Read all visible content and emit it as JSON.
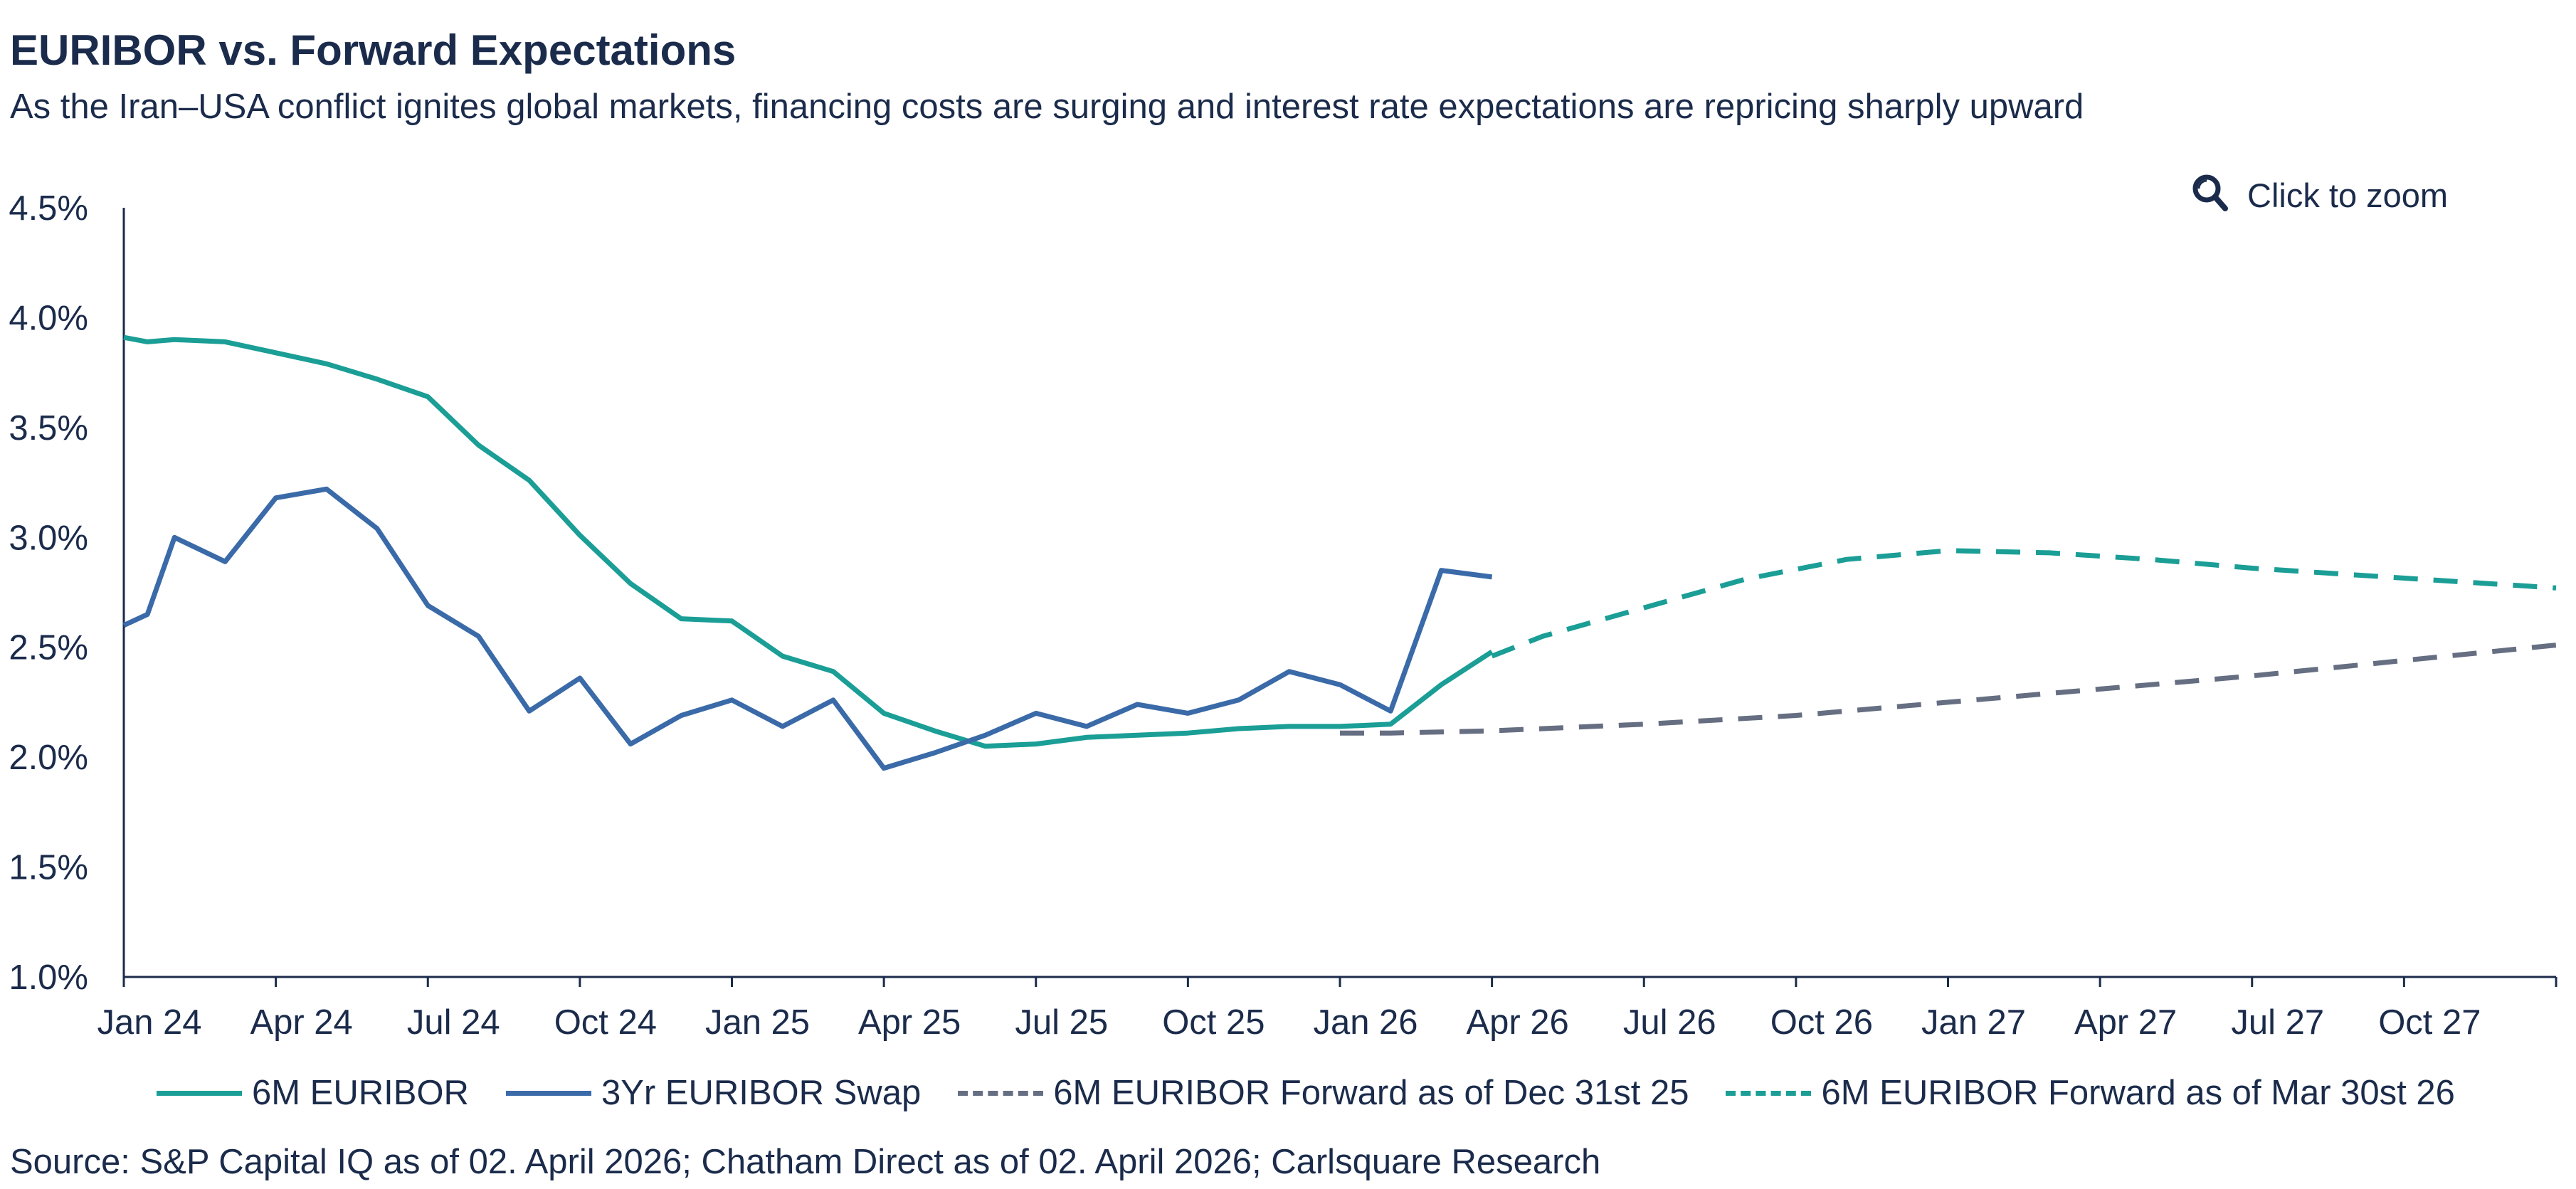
{
  "header": {
    "title": "EURIBOR vs. Forward Expectations",
    "subtitle": "As the Iran–USA conflict ignites global markets, financing costs are surging and interest rate expectations are repricing sharply upward"
  },
  "zoom": {
    "label": "Click to zoom",
    "icon": "magnifier-icon"
  },
  "source": "Source: S&P Capital IQ as of 02. April 2026; Chatham Direct as of 02. April 2026; Carlsquare Research",
  "colors": {
    "teal": "#1a9e96",
    "blue": "#3a6aa8",
    "gray": "#666e82",
    "axis": "#1b2b4b"
  },
  "chart_data": {
    "type": "line",
    "title": "EURIBOR vs. Forward Expectations",
    "ylim": [
      1.0,
      4.5
    ],
    "xlim": [
      "2024-01",
      "2028-01"
    ],
    "y_ticks": [
      "1.0%",
      "1.5%",
      "2.0%",
      "2.5%",
      "3.0%",
      "3.5%",
      "4.0%",
      "4.5%"
    ],
    "x_ticks": [
      "Jan 24",
      "Apr 24",
      "Jul 24",
      "Oct 24",
      "Jan 25",
      "Apr 25",
      "Jul 25",
      "Oct 25",
      "Jan 26",
      "Apr 26",
      "Jul 26",
      "Oct 26",
      "Jan 27",
      "Apr 27",
      "Jul 27",
      "Oct 27"
    ],
    "grid": false,
    "legend_position": "bottom",
    "series": [
      {
        "name": "6M EURIBOR",
        "style": "solid",
        "color": "#1a9e96",
        "points": [
          [
            "2024-01",
            3.91
          ],
          [
            "2024-01-15",
            3.89
          ],
          [
            "2024-02",
            3.9
          ],
          [
            "2024-03",
            3.89
          ],
          [
            "2024-04",
            3.84
          ],
          [
            "2024-05",
            3.79
          ],
          [
            "2024-06",
            3.72
          ],
          [
            "2024-07",
            3.64
          ],
          [
            "2024-08",
            3.42
          ],
          [
            "2024-09",
            3.26
          ],
          [
            "2024-10",
            3.01
          ],
          [
            "2024-11",
            2.79
          ],
          [
            "2024-12",
            2.63
          ],
          [
            "2025-01",
            2.62
          ],
          [
            "2025-02",
            2.46
          ],
          [
            "2025-03",
            2.39
          ],
          [
            "2025-04",
            2.2
          ],
          [
            "2025-05",
            2.12
          ],
          [
            "2025-06",
            2.05
          ],
          [
            "2025-07",
            2.06
          ],
          [
            "2025-08",
            2.09
          ],
          [
            "2025-09",
            2.1
          ],
          [
            "2025-10",
            2.11
          ],
          [
            "2025-11",
            2.13
          ],
          [
            "2025-12",
            2.14
          ],
          [
            "2026-01",
            2.14
          ],
          [
            "2026-02",
            2.15
          ],
          [
            "2026-03",
            2.33
          ],
          [
            "2026-04",
            2.48
          ]
        ]
      },
      {
        "name": "3Yr EURIBOR Swap",
        "style": "solid",
        "color": "#3a6aa8",
        "points": [
          [
            "2024-01",
            2.6
          ],
          [
            "2024-01-15",
            2.65
          ],
          [
            "2024-02",
            3.0
          ],
          [
            "2024-03",
            2.89
          ],
          [
            "2024-04",
            3.18
          ],
          [
            "2024-05",
            3.22
          ],
          [
            "2024-06",
            3.04
          ],
          [
            "2024-07",
            2.69
          ],
          [
            "2024-08",
            2.55
          ],
          [
            "2024-09",
            2.21
          ],
          [
            "2024-10",
            2.36
          ],
          [
            "2024-11",
            2.06
          ],
          [
            "2024-12",
            2.19
          ],
          [
            "2025-01",
            2.26
          ],
          [
            "2025-02",
            2.14
          ],
          [
            "2025-03",
            2.26
          ],
          [
            "2025-04",
            1.95
          ],
          [
            "2025-05",
            2.02
          ],
          [
            "2025-06",
            2.1
          ],
          [
            "2025-07",
            2.2
          ],
          [
            "2025-08",
            2.14
          ],
          [
            "2025-09",
            2.24
          ],
          [
            "2025-10",
            2.2
          ],
          [
            "2025-11",
            2.26
          ],
          [
            "2025-12",
            2.39
          ],
          [
            "2026-01",
            2.33
          ],
          [
            "2026-02",
            2.21
          ],
          [
            "2026-03",
            2.85
          ],
          [
            "2026-04",
            2.82
          ]
        ]
      },
      {
        "name": "6M EURIBOR Forward as of Dec 31st 25",
        "style": "dashed",
        "color": "#666e82",
        "points": [
          [
            "2026-01",
            2.11
          ],
          [
            "2026-02",
            2.11
          ],
          [
            "2026-04",
            2.12
          ],
          [
            "2026-07",
            2.15
          ],
          [
            "2026-10",
            2.19
          ],
          [
            "2027-01",
            2.25
          ],
          [
            "2027-04",
            2.31
          ],
          [
            "2027-07",
            2.37
          ],
          [
            "2027-10",
            2.44
          ],
          [
            "2028-01",
            2.51
          ]
        ]
      },
      {
        "name": "6M EURIBOR Forward as of Mar 30st 26",
        "style": "dashed",
        "color": "#1a9e96",
        "points": [
          [
            "2026-04",
            2.46
          ],
          [
            "2026-05",
            2.55
          ],
          [
            "2026-07",
            2.68
          ],
          [
            "2026-09",
            2.81
          ],
          [
            "2026-11",
            2.9
          ],
          [
            "2027-01",
            2.94
          ],
          [
            "2027-03",
            2.93
          ],
          [
            "2027-05",
            2.9
          ],
          [
            "2027-07",
            2.86
          ],
          [
            "2027-09",
            2.83
          ],
          [
            "2027-11",
            2.8
          ],
          [
            "2028-01",
            2.77
          ]
        ]
      }
    ]
  }
}
